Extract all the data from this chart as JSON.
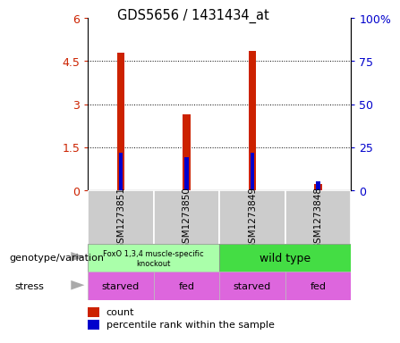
{
  "title": "GDS5656 / 1431434_at",
  "samples": [
    "GSM1273851",
    "GSM1273850",
    "GSM1273849",
    "GSM1273848"
  ],
  "count_values": [
    4.8,
    2.65,
    4.85,
    0.22
  ],
  "percentile_values": [
    22,
    19,
    22,
    5
  ],
  "ylim_left": [
    0,
    6
  ],
  "ylim_right": [
    0,
    100
  ],
  "yticks_left": [
    0,
    1.5,
    3,
    4.5,
    6
  ],
  "ytick_labels_left": [
    "0",
    "1.5",
    "3",
    "4.5",
    "6"
  ],
  "yticks_right": [
    0,
    25,
    50,
    75,
    100
  ],
  "ytick_labels_right": [
    "0",
    "25",
    "50",
    "75",
    "100%"
  ],
  "bar_color": "#cc2200",
  "percentile_color": "#0000cc",
  "bar_width": 0.12,
  "genotype_labels": [
    "FoxO 1,3,4 muscle-specific\nknockout",
    "wild type"
  ],
  "genotype_colors": [
    "#aaffaa",
    "#44dd44"
  ],
  "stress_labels": [
    "starved",
    "fed",
    "starved",
    "fed"
  ],
  "stress_color": "#dd66dd",
  "left_label": "genotype/variation",
  "stress_label": "stress",
  "legend_count": "count",
  "legend_percentile": "percentile rank within the sample",
  "sample_bg": "#cccccc",
  "fig_bg": "#ffffff",
  "grid_color": "#000000"
}
